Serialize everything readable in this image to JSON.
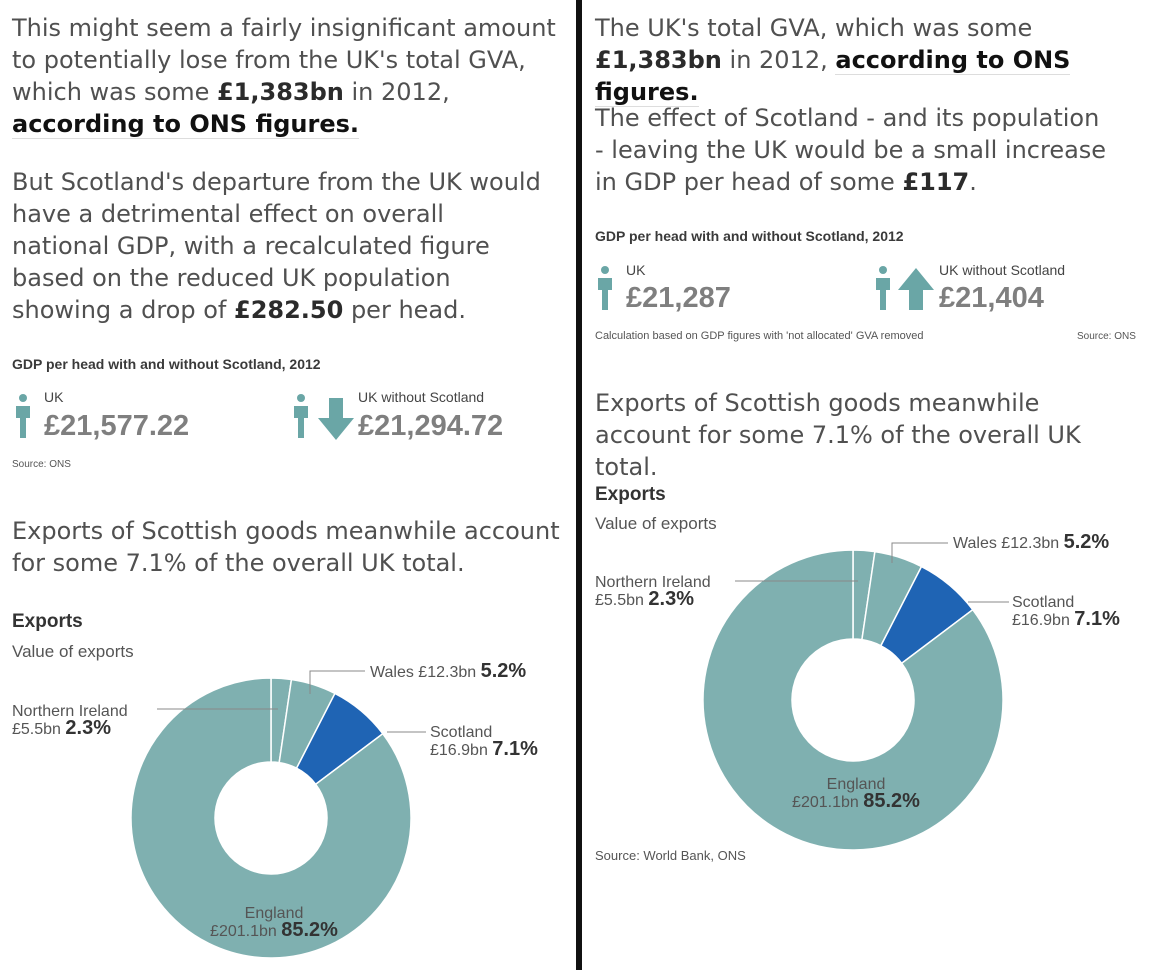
{
  "left": {
    "para1": {
      "text1": "This might seem a fairly insignificant amount to potentially lose from the UK's total GVA, which was some ",
      "bold": "£1,383bn",
      "text2": " in 2012, ",
      "link": "according to ONS figures."
    },
    "para2": {
      "text1": "But Scotland's departure from the UK would have a detrimental effect on overall national GDP, with a recalculated figure based on the reduced UK population showing a drop of ",
      "bold": "£282.50",
      "text2": " per head."
    },
    "gdp": {
      "title": "GDP per head with and without Scotland, 2012",
      "uk_label": "UK",
      "uk_value": "£21,577.22",
      "wo_label": "UK without Scotland",
      "wo_value": "£21,294.72",
      "source": "Source: ONS"
    },
    "para3": "Exports of Scottish goods meanwhile account for some 7.1% of the overall UK total.",
    "exports": {
      "title": "Exports",
      "subtitle": "Value of exports"
    }
  },
  "right": {
    "para1": {
      "text1": "The UK's total GVA, which was some ",
      "bold": "£1,383bn",
      "text2": " in 2012, ",
      "link": "according to ONS figures."
    },
    "para2": {
      "text1": "The effect of Scotland - and its population - leaving the UK would be a small increase in GDP per head of some ",
      "bold": "£117",
      "text2": "."
    },
    "gdp": {
      "title": "GDP per head with and without Scotland, 2012",
      "uk_label": "UK",
      "uk_value": "£21,287",
      "wo_label": "UK without Scotland",
      "wo_value": "£21,404",
      "note": "Calculation based on GDP figures with 'not allocated' GVA removed",
      "source": "Source: ONS"
    },
    "para3": "Exports of Scottish goods meanwhile account for some 7.1% of the overall UK total.",
    "exports": {
      "title": "Exports",
      "subtitle": "Value of exports",
      "source": "Source: World Bank, ONS"
    }
  },
  "colors": {
    "england": "#7fb0b0",
    "scotland": "#1f64b4",
    "wales": "#7fb0b0",
    "northern_ireland": "#7fb0b0",
    "gdp_icon": "#6aa6a6",
    "divider": "#111111"
  },
  "icons": {
    "person": "person-icon",
    "arrow_down": "arrow-down-icon",
    "arrow_up": "arrow-up-icon"
  },
  "chart_data": {
    "type": "pie",
    "title": "Exports",
    "subtitle": "Value of exports",
    "categories": [
      "England",
      "Scotland",
      "Wales",
      "Northern Ireland"
    ],
    "values": [
      201.1,
      16.9,
      12.3,
      5.5
    ],
    "value_labels": [
      "£201.1bn",
      "£16.9bn",
      "£12.3bn",
      "£5.5bn"
    ],
    "percents": [
      85.2,
      7.1,
      5.2,
      2.3
    ],
    "percent_labels": [
      "85.2%",
      "7.1%",
      "5.2%",
      "2.3%"
    ]
  }
}
